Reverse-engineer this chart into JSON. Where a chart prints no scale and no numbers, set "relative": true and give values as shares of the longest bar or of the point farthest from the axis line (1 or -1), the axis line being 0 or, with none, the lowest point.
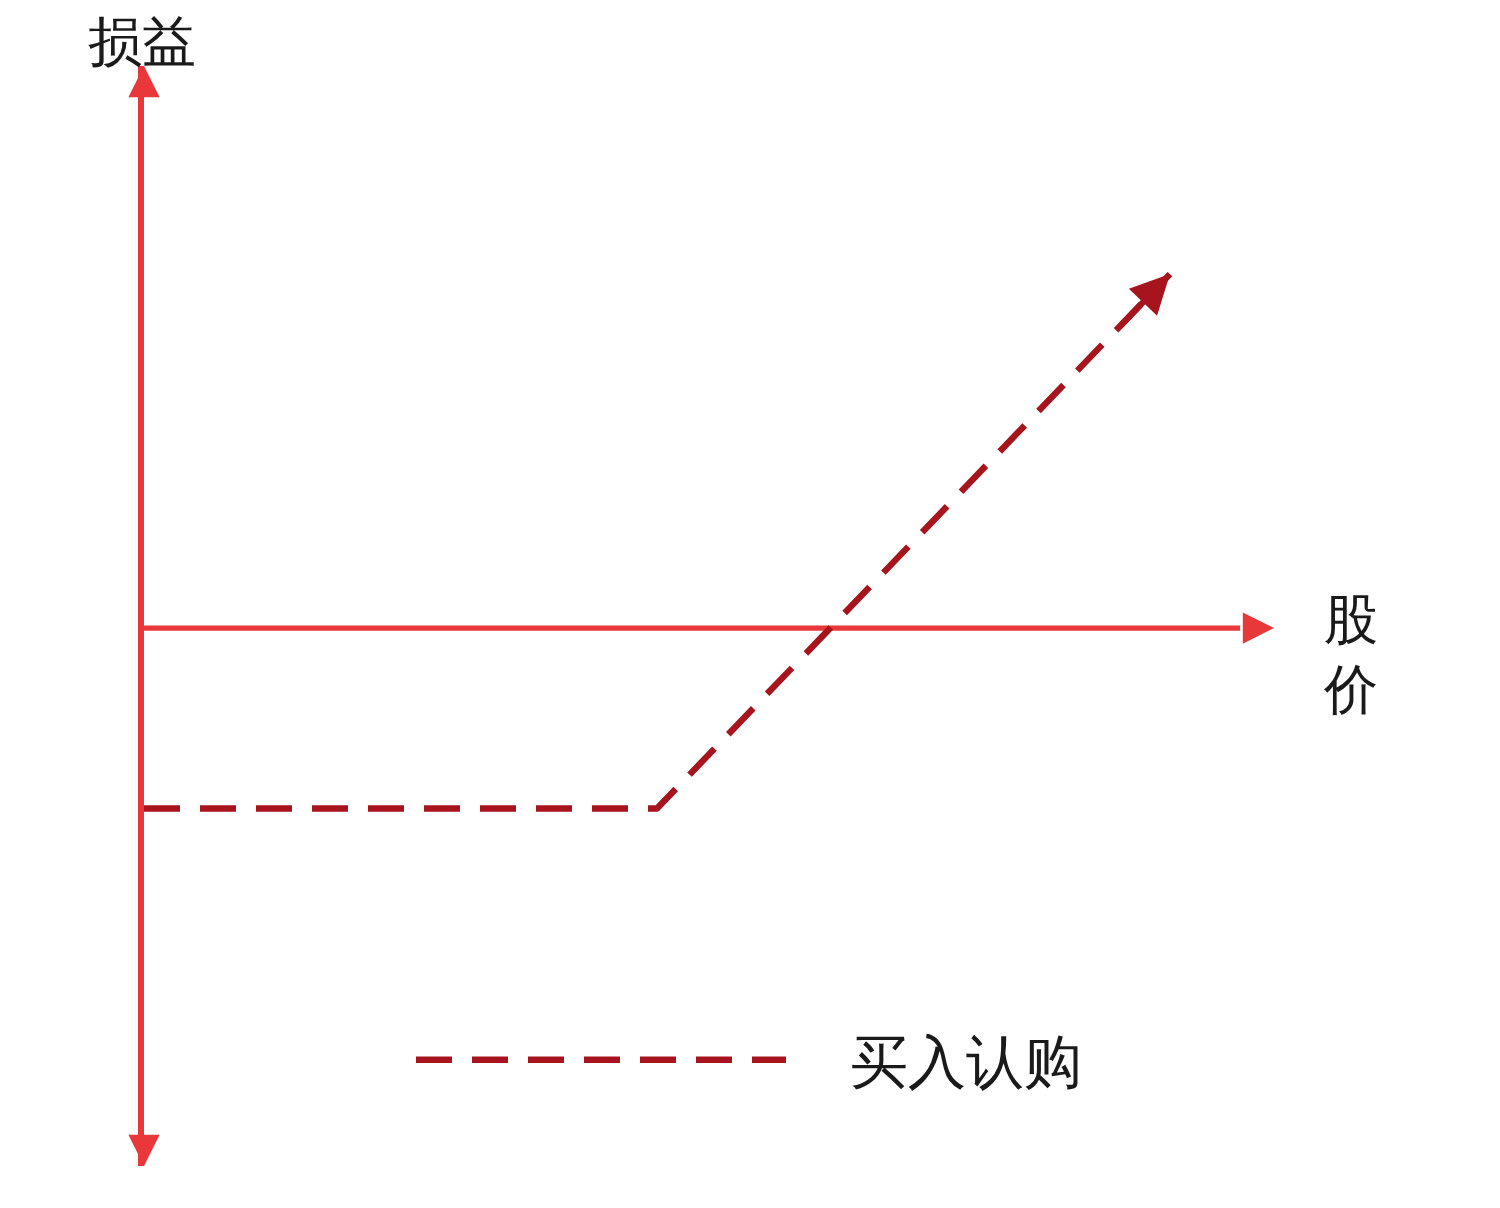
{
  "chart_data": {
    "type": "line",
    "xlabel": "股价",
    "ylabel": "损益",
    "categories": [
      null,
      null,
      null
    ],
    "relative": true,
    "series": [
      {
        "name": "买入认购",
        "color": "#a8141e",
        "values": [
          -0.51,
          -0.51,
          1
        ]
      }
    ],
    "line_style": "dashed",
    "legend": "bottom",
    "ref_lines": [
      {
        "axis": "y",
        "value": 0,
        "color": "#e8383a"
      }
    ]
  }
}
